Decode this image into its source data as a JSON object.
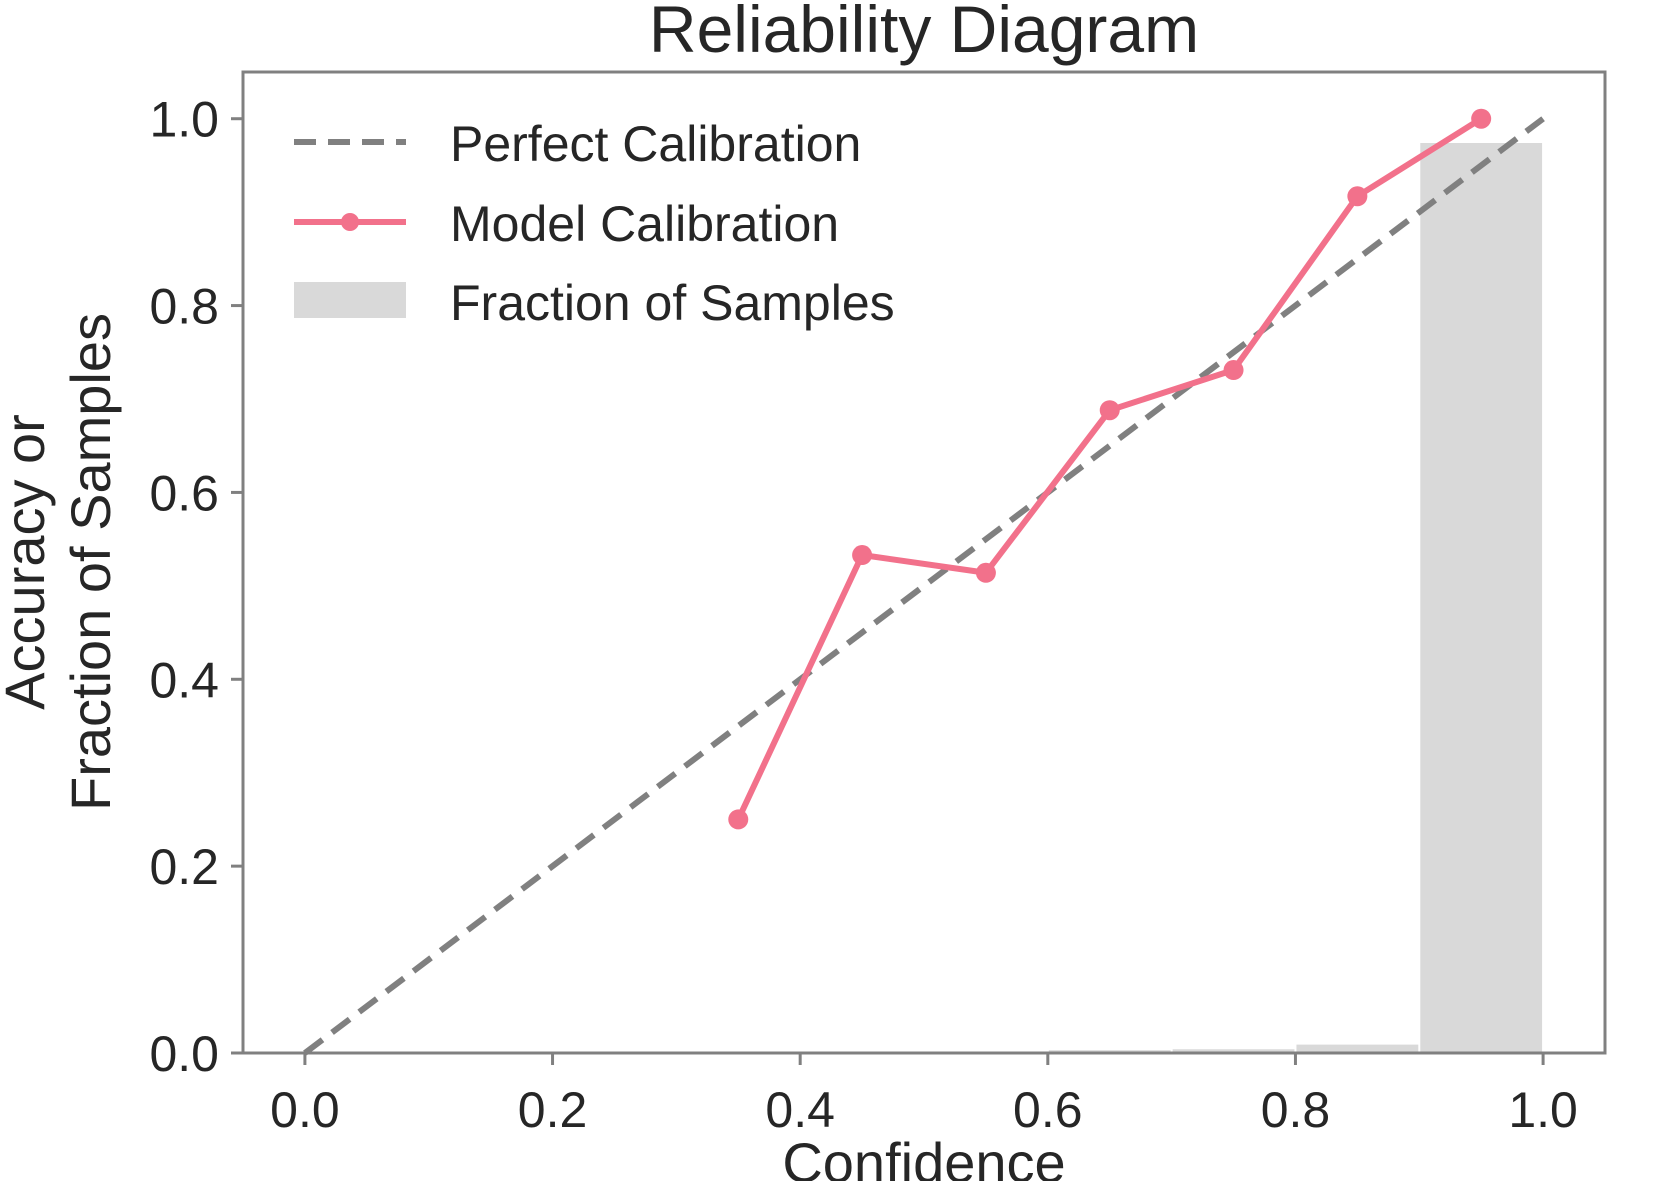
{
  "chart_data": {
    "type": "line",
    "title": "Reliability Diagram",
    "xlabel": "Confidence",
    "ylabel_lines": [
      "Accuracy or",
      "Fraction of Samples"
    ],
    "xlim": [
      -0.05,
      1.05
    ],
    "ylim": [
      0.0,
      1.05
    ],
    "x_ticks": [
      0.0,
      0.2,
      0.4,
      0.6,
      0.8,
      1.0
    ],
    "x_tick_labels": [
      "0.0",
      "0.2",
      "0.4",
      "0.6",
      "0.8",
      "1.0"
    ],
    "y_ticks": [
      0.0,
      0.2,
      0.4,
      0.6,
      0.8,
      1.0
    ],
    "y_tick_labels": [
      "0.0",
      "0.2",
      "0.4",
      "0.6",
      "0.8",
      "1.0"
    ],
    "grid": false,
    "legend_position": "top-left",
    "series": [
      {
        "name": "Perfect Calibration",
        "kind": "line",
        "style": "dashed",
        "color": "#808080",
        "x": [
          0.0,
          1.0
        ],
        "y": [
          0.0,
          1.0
        ]
      },
      {
        "name": "Model Calibration",
        "kind": "line-markers",
        "color": "#f2718b",
        "x": [
          0.35,
          0.45,
          0.55,
          0.65,
          0.75,
          0.85,
          0.95
        ],
        "y": [
          0.25,
          0.533,
          0.514,
          0.688,
          0.731,
          0.917,
          1.0
        ]
      },
      {
        "name": "Fraction of Samples",
        "kind": "bar",
        "color": "#d9d9d9",
        "bin_edges": [
          0.5,
          0.6,
          0.7,
          0.8,
          0.9,
          1.0
        ],
        "values": [
          0.001,
          0.003,
          0.004,
          0.009,
          0.974
        ]
      }
    ]
  }
}
